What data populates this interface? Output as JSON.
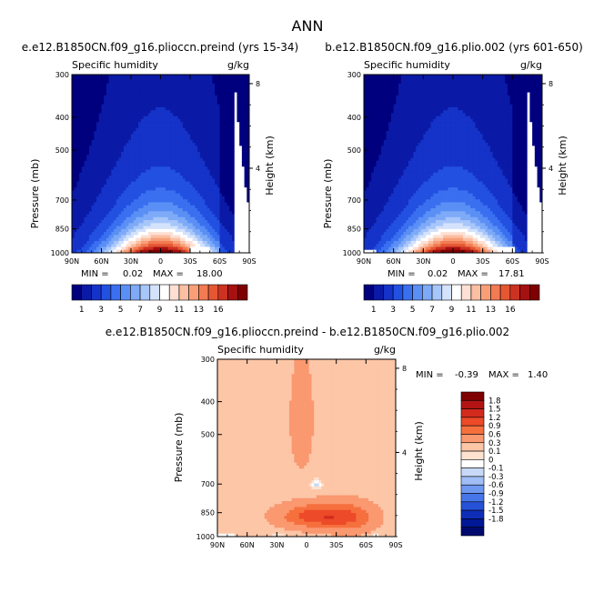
{
  "figure_title": "ANN",
  "panels": [
    {
      "title": "e.e12.B1850CN.f09_g16.plioccn.preind (yrs 15-34)",
      "left_label": "Specific humidity",
      "right_label": "g/kg",
      "ylabel": "Pressure (mb)",
      "right_axis_label": "Height (km)",
      "stats": {
        "min_label": "MIN =",
        "min": "0.02",
        "max_label": "MAX =",
        "max": "18.00"
      }
    },
    {
      "title": "b.e12.B1850CN.f09_g16.plio.002 (yrs 601-650)",
      "left_label": "Specific humidity",
      "right_label": "g/kg",
      "ylabel": "Pressure (mb)",
      "right_axis_label": "Height (km)",
      "stats": {
        "min_label": "MIN =",
        "min": "0.02",
        "max_label": "MAX =",
        "max": "17.81"
      }
    },
    {
      "title": "e.e12.B1850CN.f09_g16.plioccn.preind - b.e12.B1850CN.f09_g16.plio.002",
      "left_label": "Specific humidity",
      "right_label": "g/kg",
      "ylabel": "Pressure (mb)",
      "right_axis_label": "Height (km)",
      "stats": {
        "min_label": "MIN =",
        "min": "-0.39",
        "max_label": "MAX =",
        "max": "1.40"
      }
    }
  ],
  "chart_data": [
    {
      "type": "heatmap",
      "title": "e.e12.B1850CN.f09_g16.plioccn.preind (yrs 15-34)",
      "variable": "Specific humidity",
      "units": "g/kg",
      "ylabel": "Pressure (mb)",
      "y2label": "Height (km)",
      "x_ticks": [
        "90N",
        "60N",
        "30N",
        "0",
        "30S",
        "60S",
        "90S"
      ],
      "y_ticks": [
        300,
        400,
        500,
        700,
        850,
        1000
      ],
      "y2_ticks": [
        8,
        4
      ],
      "ylim": [
        1000,
        300
      ],
      "min": 0.02,
      "max": 18.0,
      "colorbar_levels": [
        1,
        2,
        3,
        4,
        5,
        6,
        7,
        8,
        9,
        10,
        11,
        12,
        13,
        14,
        15,
        16
      ],
      "colorbar_labels": [
        "1",
        "3",
        "5",
        "7",
        "9",
        "11",
        "13",
        "16"
      ]
    },
    {
      "type": "heatmap",
      "title": "b.e12.B1850CN.f09_g16.plio.002 (yrs 601-650)",
      "variable": "Specific humidity",
      "units": "g/kg",
      "ylabel": "Pressure (mb)",
      "y2label": "Height (km)",
      "x_ticks": [
        "90N",
        "60N",
        "30N",
        "0",
        "30S",
        "60S",
        "90S"
      ],
      "y_ticks": [
        300,
        400,
        500,
        700,
        850,
        1000
      ],
      "y2_ticks": [
        8,
        4
      ],
      "ylim": [
        1000,
        300
      ],
      "min": 0.02,
      "max": 17.81,
      "colorbar_levels": [
        1,
        2,
        3,
        4,
        5,
        6,
        7,
        8,
        9,
        10,
        11,
        12,
        13,
        14,
        15,
        16
      ],
      "colorbar_labels": [
        "1",
        "3",
        "5",
        "7",
        "9",
        "11",
        "13",
        "16"
      ]
    },
    {
      "type": "heatmap",
      "title": "e.e12.B1850CN.f09_g16.plioccn.preind - b.e12.B1850CN.f09_g16.plio.002",
      "variable": "Specific humidity",
      "units": "g/kg",
      "ylabel": "Pressure (mb)",
      "y2label": "Height (km)",
      "x_ticks": [
        "90N",
        "60N",
        "30N",
        "0",
        "30S",
        "60S",
        "90S"
      ],
      "y_ticks": [
        300,
        400,
        500,
        700,
        850,
        1000
      ],
      "y2_ticks": [
        8,
        4
      ],
      "ylim": [
        1000,
        300
      ],
      "min": -0.39,
      "max": 1.4,
      "colorbar_labels": [
        "1.8",
        "1.5",
        "1.2",
        "0.9",
        "0.6",
        "0.3",
        "0.1",
        "0",
        "-0.1",
        "-0.3",
        "-0.6",
        "-0.9",
        "-1.2",
        "-1.5",
        "-1.8"
      ]
    }
  ],
  "colors": {
    "full_scale": [
      "#00007f",
      "#0a1aa6",
      "#1533c8",
      "#2250e0",
      "#3a6ff0",
      "#5a8ff5",
      "#7eaaf7",
      "#a7c6fa",
      "#d4e2fb",
      "#ffffff",
      "#fde0d3",
      "#fbbfa2",
      "#f89f78",
      "#f27b52",
      "#e55733",
      "#cc3221",
      "#a51111",
      "#7e0000"
    ],
    "diff_scale": [
      "#7e0000",
      "#b21414",
      "#d32a1e",
      "#ec4a28",
      "#f6703e",
      "#fa9870",
      "#fcc6a7",
      "#fde2cf",
      "#ffffff",
      "#c8d9f8",
      "#a0bef5",
      "#6f99f0",
      "#4676ea",
      "#2652d8",
      "#0f2eb8",
      "#001796",
      "#000a6e"
    ]
  }
}
